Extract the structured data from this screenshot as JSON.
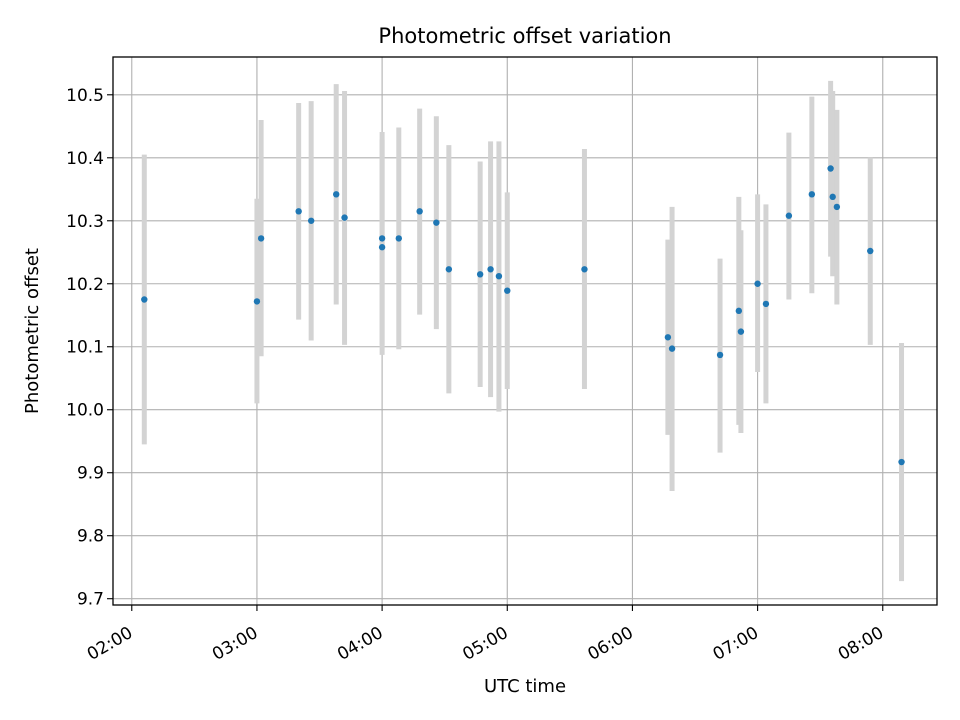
{
  "chart_data": {
    "type": "scatter",
    "title": "Photometric offset variation",
    "xlabel": "UTC time",
    "ylabel": "Photometric offset",
    "x_tick_labels": [
      "02:00",
      "03:00",
      "04:00",
      "05:00",
      "06:00",
      "07:00",
      "08:00"
    ],
    "y_tick_labels": [
      "9.7",
      "9.8",
      "9.9",
      "10.0",
      "10.1",
      "10.2",
      "10.3",
      "10.4",
      "10.5"
    ],
    "x_ticks_hours": [
      2,
      3,
      4,
      5,
      6,
      7,
      8
    ],
    "y_ticks": [
      9.7,
      9.8,
      9.9,
      10.0,
      10.1,
      10.2,
      10.3,
      10.4,
      10.5
    ],
    "xlim": [
      "01:51",
      "08:26"
    ],
    "ylim": [
      9.69,
      10.56
    ],
    "grid": true,
    "marker_color": "#1f77b4",
    "errorbar_color": "#d3d3d3",
    "points": [
      {
        "time": "02:06",
        "value": 10.175,
        "low": 9.945,
        "high": 10.405
      },
      {
        "time": "03:00",
        "value": 10.172,
        "low": 10.01,
        "high": 10.335
      },
      {
        "time": "03:02",
        "value": 10.272,
        "low": 10.085,
        "high": 10.46
      },
      {
        "time": "03:20",
        "value": 10.315,
        "low": 10.143,
        "high": 10.487
      },
      {
        "time": "03:26",
        "value": 10.3,
        "low": 10.11,
        "high": 10.49
      },
      {
        "time": "03:38",
        "value": 10.342,
        "low": 10.167,
        "high": 10.517
      },
      {
        "time": "03:42",
        "value": 10.305,
        "low": 10.103,
        "high": 10.506
      },
      {
        "time": "04:00",
        "value": 10.272,
        "low": 10.103,
        "high": 10.441
      },
      {
        "time": "04:00",
        "value": 10.258,
        "low": 10.087,
        "high": 10.429
      },
      {
        "time": "04:08",
        "value": 10.272,
        "low": 10.096,
        "high": 10.448
      },
      {
        "time": "04:18",
        "value": 10.315,
        "low": 10.151,
        "high": 10.478
      },
      {
        "time": "04:26",
        "value": 10.297,
        "low": 10.128,
        "high": 10.466
      },
      {
        "time": "04:32",
        "value": 10.223,
        "low": 10.026,
        "high": 10.42
      },
      {
        "time": "04:47",
        "value": 10.215,
        "low": 10.036,
        "high": 10.394
      },
      {
        "time": "04:52",
        "value": 10.223,
        "low": 10.02,
        "high": 10.426
      },
      {
        "time": "04:56",
        "value": 10.212,
        "low": 9.997,
        "high": 10.426
      },
      {
        "time": "05:00",
        "value": 10.189,
        "low": 10.033,
        "high": 10.345
      },
      {
        "time": "05:37",
        "value": 10.223,
        "low": 10.033,
        "high": 10.414
      },
      {
        "time": "06:17",
        "value": 10.115,
        "low": 9.96,
        "high": 10.27
      },
      {
        "time": "06:19",
        "value": 10.097,
        "low": 9.871,
        "high": 10.322
      },
      {
        "time": "06:42",
        "value": 10.087,
        "low": 9.932,
        "high": 10.24
      },
      {
        "time": "06:51",
        "value": 10.157,
        "low": 9.976,
        "high": 10.338
      },
      {
        "time": "06:52",
        "value": 10.124,
        "low": 9.963,
        "high": 10.285
      },
      {
        "time": "07:00",
        "value": 10.2,
        "low": 10.06,
        "high": 10.342
      },
      {
        "time": "07:04",
        "value": 10.168,
        "low": 10.01,
        "high": 10.326
      },
      {
        "time": "07:15",
        "value": 10.308,
        "low": 10.175,
        "high": 10.44
      },
      {
        "time": "07:26",
        "value": 10.342,
        "low": 10.185,
        "high": 10.497
      },
      {
        "time": "07:35",
        "value": 10.383,
        "low": 10.243,
        "high": 10.522
      },
      {
        "time": "07:36",
        "value": 10.338,
        "low": 10.212,
        "high": 10.506
      },
      {
        "time": "07:38",
        "value": 10.322,
        "low": 10.167,
        "high": 10.476
      },
      {
        "time": "07:54",
        "value": 10.252,
        "low": 10.103,
        "high": 10.4
      },
      {
        "time": "08:09",
        "value": 9.917,
        "low": 9.728,
        "high": 10.106
      }
    ]
  }
}
